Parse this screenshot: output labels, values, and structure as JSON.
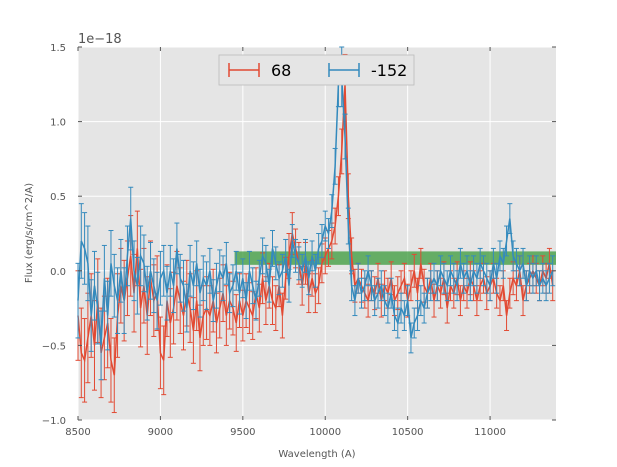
{
  "chart_data": {
    "type": "line",
    "title": "",
    "xlabel": "Wavelength (A)",
    "ylabel": "Flux (erg/s/cm^2/A)",
    "offset_text": "1e−18",
    "xlim": [
      8500,
      11400
    ],
    "ylim": [
      -1.0,
      1.5
    ],
    "xticks": [
      8500,
      9000,
      9500,
      10000,
      10500,
      11000
    ],
    "xtick_labels": [
      "8500",
      "9000",
      "9500",
      "10000",
      "10500",
      "11000"
    ],
    "yticks": [
      -1.0,
      -0.5,
      0.0,
      0.5,
      1.0,
      1.5
    ],
    "ytick_labels": [
      "−1.0",
      "−0.5",
      "0.0",
      "0.5",
      "1.0",
      "1.5"
    ],
    "grid": true,
    "legend_position": "top-center",
    "band": {
      "x0": 9450,
      "x1": 11400,
      "y0": 0.04,
      "y1": 0.13,
      "color": "#3a9a3a"
    },
    "x": [
      8500,
      8520,
      8540,
      8560,
      8580,
      8600,
      8620,
      8640,
      8660,
      8680,
      8700,
      8720,
      8740,
      8760,
      8780,
      8800,
      8820,
      8840,
      8860,
      8880,
      8900,
      8920,
      8940,
      8960,
      8980,
      9000,
      9020,
      9040,
      9060,
      9080,
      9100,
      9120,
      9140,
      9160,
      9180,
      9200,
      9220,
      9240,
      9260,
      9280,
      9300,
      9320,
      9340,
      9360,
      9380,
      9400,
      9420,
      9440,
      9460,
      9480,
      9500,
      9520,
      9540,
      9560,
      9580,
      9600,
      9620,
      9640,
      9660,
      9680,
      9700,
      9720,
      9740,
      9760,
      9780,
      9800,
      9820,
      9840,
      9860,
      9880,
      9900,
      9920,
      9940,
      9960,
      9980,
      10000,
      10020,
      10040,
      10060,
      10080,
      10100,
      10120,
      10140,
      10160,
      10180,
      10200,
      10220,
      10240,
      10260,
      10280,
      10300,
      10320,
      10340,
      10360,
      10380,
      10400,
      10420,
      10440,
      10460,
      10480,
      10500,
      10520,
      10540,
      10560,
      10580,
      10600,
      10620,
      10640,
      10660,
      10680,
      10700,
      10720,
      10740,
      10760,
      10780,
      10800,
      10820,
      10840,
      10860,
      10880,
      10900,
      10920,
      10940,
      10960,
      10980,
      11000,
      11020,
      11040,
      11060,
      11080,
      11100,
      11120,
      11140,
      11160,
      11180,
      11200,
      11220,
      11240,
      11260,
      11280,
      11300,
      11320,
      11340,
      11360,
      11380
    ],
    "series": [
      {
        "name": "68",
        "color": "#e24a33",
        "values": [
          -0.3,
          -0.55,
          -0.6,
          -0.45,
          -0.3,
          -0.5,
          -0.2,
          -0.55,
          -0.45,
          -0.35,
          -0.6,
          -0.7,
          -0.3,
          -0.1,
          -0.2,
          -0.05,
          0.1,
          -0.15,
          0.15,
          -0.25,
          -0.1,
          -0.3,
          -0.05,
          -0.2,
          -0.15,
          -0.55,
          -0.6,
          -0.2,
          -0.35,
          -0.25,
          -0.1,
          -0.2,
          -0.3,
          -0.15,
          -0.25,
          -0.4,
          -0.2,
          -0.45,
          -0.3,
          -0.25,
          -0.3,
          -0.2,
          -0.35,
          -0.25,
          -0.15,
          -0.3,
          -0.2,
          -0.25,
          -0.35,
          -0.2,
          -0.3,
          -0.2,
          -0.25,
          -0.3,
          -0.15,
          -0.25,
          -0.05,
          -0.2,
          -0.1,
          -0.2,
          -0.25,
          -0.1,
          -0.3,
          -0.05,
          0.1,
          0.25,
          0.15,
          0.05,
          -0.1,
          0.05,
          -0.15,
          -0.05,
          -0.15,
          -0.1,
          0.05,
          0.1,
          0.15,
          0.2,
          0.3,
          0.5,
          0.8,
          1.25,
          0.5,
          0.1,
          -0.1,
          -0.05,
          -0.1,
          -0.15,
          -0.2,
          -0.1,
          -0.15,
          -0.05,
          -0.2,
          -0.1,
          -0.15,
          -0.05,
          -0.2,
          -0.15,
          -0.1,
          -0.05,
          -0.2,
          -0.1,
          0.0,
          -0.15,
          0.05,
          -0.1,
          -0.15,
          -0.05,
          -0.2,
          -0.1,
          -0.15,
          -0.05,
          -0.25,
          -0.1,
          -0.15,
          -0.05,
          -0.2,
          -0.1,
          -0.15,
          -0.05,
          -0.1,
          -0.2,
          -0.1,
          -0.05,
          -0.15,
          -0.1,
          -0.05,
          -0.15,
          -0.2,
          -0.1,
          -0.3,
          -0.15,
          -0.05,
          -0.1,
          0.0,
          -0.2,
          -0.1,
          -0.05,
          0.0,
          -0.05,
          -0.1,
          0.0,
          -0.05,
          0.05,
          -0.1
        ],
        "errors": [
          0.3,
          0.3,
          0.28,
          0.3,
          0.28,
          0.3,
          0.28,
          0.3,
          0.28,
          0.3,
          0.28,
          0.25,
          0.28,
          0.25,
          0.27,
          0.25,
          0.27,
          0.26,
          0.25,
          0.26,
          0.25,
          0.26,
          0.25,
          0.24,
          0.25,
          0.24,
          0.23,
          0.24,
          0.23,
          0.24,
          0.23,
          0.22,
          0.23,
          0.22,
          0.23,
          0.22,
          0.2,
          0.22,
          0.2,
          0.21,
          0.2,
          0.21,
          0.2,
          0.2,
          0.19,
          0.2,
          0.19,
          0.18,
          0.19,
          0.18,
          0.17,
          0.18,
          0.17,
          0.16,
          0.17,
          0.16,
          0.17,
          0.16,
          0.15,
          0.16,
          0.15,
          0.14,
          0.15,
          0.14,
          0.15,
          0.14,
          0.13,
          0.14,
          0.13,
          0.14,
          0.13,
          0.12,
          0.13,
          0.12,
          0.13,
          0.12,
          0.12,
          0.12,
          0.12,
          0.13,
          0.15,
          0.2,
          0.15,
          0.12,
          0.11,
          0.1,
          0.11,
          0.1,
          0.11,
          0.1,
          0.11,
          0.1,
          0.11,
          0.1,
          0.1,
          0.11,
          0.1,
          0.11,
          0.1,
          0.1,
          0.11,
          0.1,
          0.11,
          0.1,
          0.1,
          0.11,
          0.1,
          0.1,
          0.11,
          0.1,
          0.1,
          0.11,
          0.1,
          0.1,
          0.1,
          0.11,
          0.1,
          0.1,
          0.1,
          0.11,
          0.1,
          0.1,
          0.1,
          0.1,
          0.11,
          0.1,
          0.1,
          0.1,
          0.1,
          0.1,
          0.1,
          0.1,
          0.11,
          0.1,
          0.1,
          0.1,
          0.1,
          0.1,
          0.1,
          0.1,
          0.1,
          0.1,
          0.1,
          0.1,
          0.1
        ]
      },
      {
        "name": "-152",
        "color": "#348abd",
        "values": [
          -0.2,
          0.2,
          0.15,
          0.05,
          -0.3,
          -0.1,
          -0.25,
          -0.5,
          -0.05,
          -0.3,
          0.05,
          -0.1,
          -0.2,
          0.0,
          -0.2,
          0.1,
          0.35,
          0.0,
          -0.1,
          0.1,
          0.05,
          -0.15,
          0.0,
          -0.1,
          -0.2,
          -0.05,
          0.0,
          -0.15,
          0.0,
          -0.1,
          0.15,
          -0.05,
          -0.1,
          -0.25,
          0.0,
          -0.1,
          0.05,
          -0.15,
          -0.05,
          -0.1,
          0.0,
          -0.2,
          -0.1,
          0.0,
          -0.05,
          0.05,
          -0.15,
          -0.1,
          0.0,
          -0.15,
          -0.05,
          -0.2,
          0.0,
          -0.1,
          -0.2,
          -0.05,
          0.1,
          0.05,
          -0.1,
          0.15,
          0.05,
          -0.05,
          0.0,
          0.1,
          -0.1,
          0.2,
          0.1,
          0.05,
          0.0,
          0.1,
          -0.05,
          0.1,
          0.0,
          0.15,
          0.2,
          0.3,
          0.25,
          0.4,
          0.7,
          1.25,
          1.3,
          0.9,
          0.3,
          -0.1,
          -0.2,
          -0.05,
          -0.15,
          -0.1,
          0.0,
          -0.1,
          -0.2,
          -0.15,
          -0.1,
          -0.2,
          -0.25,
          -0.15,
          -0.3,
          -0.35,
          -0.25,
          -0.3,
          -0.2,
          -0.45,
          -0.35,
          -0.3,
          -0.2,
          -0.25,
          -0.15,
          -0.1,
          -0.05,
          -0.1,
          0.0,
          -0.05,
          -0.1,
          0.0,
          -0.05,
          -0.1,
          0.05,
          -0.05,
          0.0,
          -0.1,
          0.0,
          -0.05,
          0.05,
          0.0,
          -0.05,
          -0.1,
          0.05,
          -0.05,
          0.1,
          0.05,
          0.2,
          0.35,
          0.1,
          0.05,
          0.0,
          0.05,
          -0.1,
          0.0,
          -0.05,
          0.0,
          -0.1,
          -0.05,
          -0.1,
          -0.05,
          0.0
        ],
        "errors": [
          0.25,
          0.25,
          0.24,
          0.25,
          0.24,
          0.23,
          0.24,
          0.23,
          0.22,
          0.23,
          0.22,
          0.21,
          0.22,
          0.21,
          0.22,
          0.2,
          0.21,
          0.2,
          0.19,
          0.2,
          0.19,
          0.18,
          0.19,
          0.18,
          0.19,
          0.18,
          0.17,
          0.18,
          0.17,
          0.18,
          0.17,
          0.16,
          0.17,
          0.16,
          0.17,
          0.16,
          0.15,
          0.16,
          0.15,
          0.16,
          0.15,
          0.14,
          0.15,
          0.14,
          0.15,
          0.14,
          0.13,
          0.14,
          0.13,
          0.14,
          0.13,
          0.12,
          0.13,
          0.12,
          0.13,
          0.12,
          0.12,
          0.12,
          0.11,
          0.12,
          0.11,
          0.11,
          0.11,
          0.11,
          0.11,
          0.11,
          0.11,
          0.11,
          0.11,
          0.11,
          0.11,
          0.1,
          0.11,
          0.1,
          0.11,
          0.1,
          0.1,
          0.11,
          0.12,
          0.15,
          0.2,
          0.15,
          0.12,
          0.1,
          0.1,
          0.1,
          0.1,
          0.1,
          0.1,
          0.1,
          0.1,
          0.1,
          0.1,
          0.1,
          0.1,
          0.1,
          0.1,
          0.1,
          0.1,
          0.1,
          0.1,
          0.1,
          0.1,
          0.1,
          0.1,
          0.1,
          0.1,
          0.1,
          0.1,
          0.1,
          0.1,
          0.1,
          0.1,
          0.1,
          0.1,
          0.1,
          0.1,
          0.1,
          0.1,
          0.1,
          0.1,
          0.1,
          0.1,
          0.1,
          0.1,
          0.1,
          0.1,
          0.1,
          0.1,
          0.1,
          0.1,
          0.1,
          0.1,
          0.1,
          0.1,
          0.1,
          0.1,
          0.1,
          0.1,
          0.1,
          0.1,
          0.1,
          0.1,
          0.1,
          0.1
        ]
      }
    ]
  }
}
